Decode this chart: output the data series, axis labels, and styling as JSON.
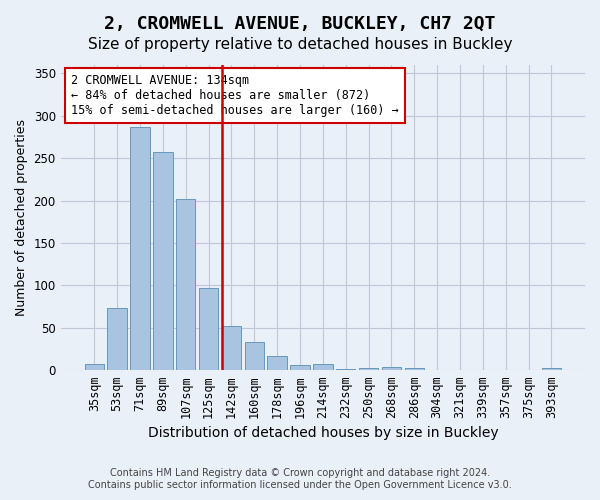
{
  "title": "2, CROMWELL AVENUE, BUCKLEY, CH7 2QT",
  "subtitle": "Size of property relative to detached houses in Buckley",
  "xlabel": "Distribution of detached houses by size in Buckley",
  "ylabel": "Number of detached properties",
  "footnote1": "Contains HM Land Registry data © Crown copyright and database right 2024.",
  "footnote2": "Contains public sector information licensed under the Open Government Licence v3.0.",
  "annotation_title": "2 CROMWELL AVENUE: 134sqm",
  "annotation_line1": "← 84% of detached houses are smaller (872)",
  "annotation_line2": "15% of semi-detached houses are larger (160) →",
  "bar_color": "#a8c4e0",
  "bar_edge_color": "#6699bb",
  "vline_color": "#cc0000",
  "annotation_box_edgecolor": "#cc0000",
  "bg_color": "#eaf0f8",
  "plot_bg_color": "#eaf0f8",
  "categories": [
    "35sqm",
    "53sqm",
    "71sqm",
    "89sqm",
    "107sqm",
    "125sqm",
    "142sqm",
    "160sqm",
    "178sqm",
    "196sqm",
    "214sqm",
    "232sqm",
    "250sqm",
    "268sqm",
    "286sqm",
    "304sqm",
    "321sqm",
    "339sqm",
    "357sqm",
    "375sqm",
    "393sqm"
  ],
  "values": [
    7,
    73,
    287,
    257,
    202,
    97,
    52,
    33,
    17,
    6,
    7,
    1,
    3,
    4,
    2,
    0,
    0,
    0,
    0,
    0,
    2
  ],
  "ylim": [
    0,
    360
  ],
  "vline_x": 5.575,
  "grid_color": "#c0c8d8",
  "title_fontsize": 13,
  "subtitle_fontsize": 11,
  "tick_fontsize": 8.5,
  "ylabel_fontsize": 9,
  "xlabel_fontsize": 10,
  "annotation_fontsize": 8.5,
  "footnote_fontsize": 7
}
